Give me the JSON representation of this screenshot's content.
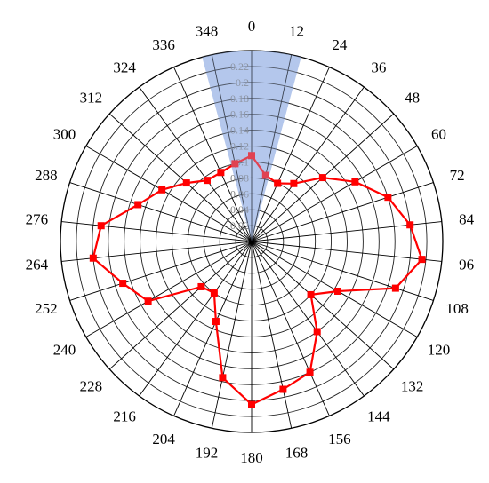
{
  "chart_data": {
    "type": "polar-line",
    "angle_unit": "degrees",
    "angle_direction": "clockwise",
    "zero_at": "top",
    "angle_ticks": [
      0,
      12,
      24,
      36,
      48,
      60,
      72,
      84,
      96,
      108,
      120,
      132,
      144,
      156,
      168,
      180,
      192,
      204,
      216,
      228,
      240,
      252,
      264,
      276,
      288,
      300,
      312,
      324,
      336,
      348
    ],
    "radial_range": [
      0,
      0.24
    ],
    "radial_ticks": [
      "0",
      "0.02",
      "0.04",
      "0.06",
      "0.08",
      "0.1",
      "0.12",
      "0.14",
      "0.16",
      "0.18",
      "0.2",
      "0.22"
    ],
    "radial_step": 0.02,
    "grid": true,
    "highlight_sector": {
      "from": 345,
      "to": 15,
      "color": "#a6bce8",
      "opacity": 0.75
    },
    "series": [
      {
        "color": "#ff0000",
        "marker": "square",
        "points": [
          [
            0,
            0.108
          ],
          [
            12,
            0.085
          ],
          [
            24,
            0.08
          ],
          [
            36,
            0.09
          ],
          [
            48,
            0.12
          ],
          [
            60,
            0.15
          ],
          [
            72,
            0.18
          ],
          [
            84,
            0.2
          ],
          [
            96,
            0.215
          ],
          [
            108,
            0.19
          ],
          [
            120,
            0.125
          ],
          [
            132,
            0.1
          ],
          [
            144,
            0.14
          ],
          [
            156,
            0.18
          ],
          [
            168,
            0.19
          ],
          [
            180,
            0.205
          ],
          [
            192,
            0.175
          ],
          [
            204,
            0.11
          ],
          [
            216,
            0.08
          ],
          [
            228,
            0.085
          ],
          [
            240,
            0.15
          ],
          [
            252,
            0.17
          ],
          [
            264,
            0.2
          ],
          [
            276,
            0.19
          ],
          [
            288,
            0.15
          ],
          [
            300,
            0.13
          ],
          [
            312,
            0.11
          ],
          [
            324,
            0.095
          ],
          [
            336,
            0.095
          ],
          [
            348,
            0.1
          ]
        ]
      }
    ]
  }
}
